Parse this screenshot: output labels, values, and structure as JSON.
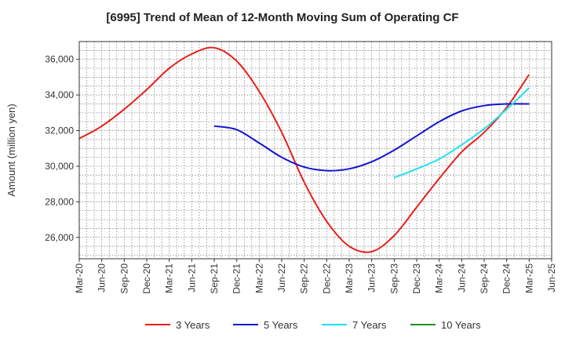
{
  "chart_data": {
    "type": "line",
    "title": "[6995]  Trend of Mean of 12-Month Moving Sum of Operating CF",
    "xlabel": "",
    "ylabel": "Amount (million yen)",
    "ylim": [
      24800,
      37000
    ],
    "yticks": [
      26000,
      28000,
      30000,
      32000,
      34000,
      36000
    ],
    "ytick_labels": [
      "26,000",
      "28,000",
      "30,000",
      "32,000",
      "34,000",
      "36,000"
    ],
    "x_tick_labels": [
      "Mar-20",
      "Jun-20",
      "Sep-20",
      "Dec-20",
      "Mar-21",
      "Jun-21",
      "Sep-21",
      "Dec-21",
      "Mar-22",
      "Jun-22",
      "Sep-22",
      "Dec-22",
      "Mar-23",
      "Jun-23",
      "Sep-23",
      "Dec-23",
      "Mar-24",
      "Jun-24",
      "Sep-24",
      "Dec-24",
      "Mar-25",
      "Jun-25"
    ],
    "grid": true,
    "legend_position": "bottom",
    "series": [
      {
        "name": "3 Years",
        "color": "#e8201c",
        "points": [
          [
            0,
            31550
          ],
          [
            1,
            32250
          ],
          [
            2,
            33200
          ],
          [
            3,
            34300
          ],
          [
            4,
            35500
          ],
          [
            5,
            36300
          ],
          [
            6,
            36650
          ],
          [
            7,
            35900
          ],
          [
            8,
            34200
          ],
          [
            9,
            31900
          ],
          [
            10,
            29100
          ],
          [
            11,
            26900
          ],
          [
            12,
            25500
          ],
          [
            13,
            25200
          ],
          [
            14,
            26100
          ],
          [
            15,
            27700
          ],
          [
            16,
            29300
          ],
          [
            17,
            30800
          ],
          [
            18,
            31900
          ],
          [
            19,
            33300
          ],
          [
            20,
            35150
          ]
        ]
      },
      {
        "name": "5 Years",
        "color": "#1414d2",
        "points": [
          [
            6,
            32250
          ],
          [
            7,
            32050
          ],
          [
            8,
            31300
          ],
          [
            9,
            30500
          ],
          [
            10,
            29950
          ],
          [
            11,
            29750
          ],
          [
            12,
            29850
          ],
          [
            13,
            30250
          ],
          [
            14,
            30900
          ],
          [
            15,
            31700
          ],
          [
            16,
            32500
          ],
          [
            17,
            33100
          ],
          [
            18,
            33400
          ],
          [
            19,
            33500
          ],
          [
            20,
            33500
          ]
        ]
      },
      {
        "name": "7 Years",
        "color": "#22e0f0",
        "points": [
          [
            14,
            29350
          ],
          [
            15,
            29850
          ],
          [
            16,
            30400
          ],
          [
            17,
            31200
          ],
          [
            18,
            32100
          ],
          [
            19,
            33200
          ],
          [
            20,
            34400
          ]
        ]
      },
      {
        "name": "10 Years",
        "color": "#228b22",
        "points": []
      }
    ]
  }
}
